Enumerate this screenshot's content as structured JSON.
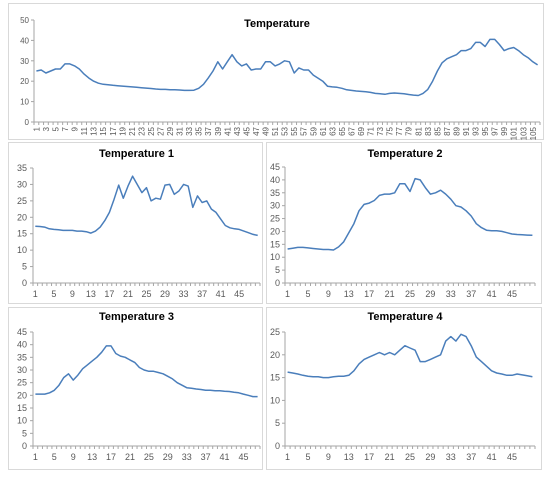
{
  "colors": {
    "line": "#4a7ebb",
    "axis": "#a6a6a6",
    "tick_text": "#595959",
    "title_text": "#000000",
    "border": "#d9d9d9"
  },
  "chart_data": [
    {
      "type": "line",
      "title": "Temperature",
      "ylim": [
        0,
        50
      ],
      "yticks": [
        0,
        10,
        20,
        30,
        40,
        50
      ],
      "grid": false,
      "legend": "none",
      "xtick_labels": [
        "1",
        "3",
        "5",
        "7",
        "9",
        "11",
        "13",
        "15",
        "17",
        "19",
        "21",
        "23",
        "25",
        "27",
        "29",
        "31",
        "33",
        "35",
        "37",
        "39",
        "41",
        "43",
        "45",
        "47",
        "49",
        "51",
        "53",
        "55",
        "57",
        "59",
        "61",
        "63",
        "65",
        "67",
        "69",
        "71",
        "73",
        "75",
        "77",
        "79",
        "81",
        "83",
        "85",
        "87",
        "89",
        "91",
        "93",
        "95",
        "97",
        "99",
        "101",
        "103",
        "105"
      ],
      "x": [
        1,
        2,
        3,
        4,
        5,
        6,
        7,
        8,
        9,
        10,
        11,
        12,
        13,
        14,
        15,
        16,
        17,
        18,
        19,
        20,
        21,
        22,
        23,
        24,
        25,
        26,
        27,
        28,
        29,
        30,
        31,
        32,
        33,
        34,
        35,
        36,
        37,
        38,
        39,
        40,
        41,
        42,
        43,
        44,
        45,
        46,
        47,
        48,
        49,
        50,
        51,
        52,
        53,
        54,
        55,
        56,
        57,
        58,
        59,
        60,
        61,
        62,
        63,
        64,
        65,
        66,
        67,
        68,
        69,
        70,
        71,
        72,
        73,
        74,
        75,
        76,
        77,
        78,
        79,
        80,
        81,
        82,
        83,
        84,
        85,
        86,
        87,
        88,
        89,
        90,
        91,
        92,
        93,
        94,
        95,
        96,
        97,
        98,
        99,
        100,
        101,
        102,
        103,
        104,
        105,
        106
      ],
      "values": [
        25,
        25.5,
        24,
        25,
        26,
        26,
        28.5,
        28.5,
        27.5,
        26,
        23.5,
        21.5,
        20,
        19,
        18.5,
        18.3,
        18,
        17.8,
        17.6,
        17.4,
        17.2,
        17,
        16.8,
        16.6,
        16.4,
        16.2,
        16,
        16,
        15.8,
        15.8,
        15.7,
        15.5,
        15.5,
        15.6,
        16.5,
        18.5,
        21.5,
        25,
        29.5,
        26,
        29.5,
        33,
        29.5,
        27.5,
        28.5,
        25.5,
        26,
        26,
        29.5,
        29.5,
        27.5,
        28.5,
        30,
        29.5,
        24,
        26.5,
        25.5,
        25.5,
        23,
        21.5,
        20,
        17.5,
        17.2,
        17,
        16.5,
        15.8,
        15.5,
        15.2,
        15,
        14.8,
        14.5,
        14,
        13.8,
        13.6,
        14,
        14.2,
        14,
        13.8,
        13.5,
        13.2,
        13,
        14,
        16,
        20,
        25,
        29,
        31,
        32,
        33,
        35,
        35,
        36,
        39,
        39,
        37,
        40.5,
        40.5,
        38,
        35,
        36,
        36.5,
        35,
        33,
        31.5,
        29.5,
        28
      ]
    },
    {
      "type": "line",
      "title": "Temperature 1",
      "ylim": [
        0,
        35
      ],
      "yticks": [
        0,
        5,
        10,
        15,
        20,
        25,
        30,
        35
      ],
      "grid": false,
      "legend": "none",
      "xtick_labels": [
        "1",
        "5",
        "9",
        "13",
        "17",
        "21",
        "25",
        "29",
        "33",
        "37",
        "41",
        "45"
      ],
      "x": [
        1,
        2,
        3,
        4,
        5,
        6,
        7,
        8,
        9,
        10,
        11,
        12,
        13,
        14,
        15,
        16,
        17,
        18,
        19,
        20,
        21,
        22,
        23,
        24,
        25,
        26,
        27,
        28,
        29,
        30,
        31,
        32,
        33,
        34,
        35,
        36,
        37,
        38,
        39,
        40,
        41,
        42,
        43,
        44,
        45,
        46,
        47,
        48,
        49
      ],
      "values": [
        17.3,
        17.2,
        17,
        16.5,
        16.3,
        16.2,
        16,
        16,
        16,
        15.8,
        15.8,
        15.6,
        15.2,
        15.8,
        17,
        19,
        21.5,
        25.5,
        29.8,
        25.8,
        29.5,
        32.5,
        30,
        27.5,
        29,
        25,
        25.8,
        25.5,
        29.8,
        30,
        27,
        28,
        30,
        29.5,
        23,
        26.5,
        24.5,
        25,
        22.5,
        21.5,
        19.5,
        17.5,
        16.8,
        16.5,
        16.3,
        15.8,
        15.3,
        14.8,
        14.5
      ]
    },
    {
      "type": "line",
      "title": "Temperature 2",
      "ylim": [
        0,
        45
      ],
      "yticks": [
        0,
        5,
        10,
        15,
        20,
        25,
        30,
        35,
        40,
        45
      ],
      "grid": false,
      "legend": "none",
      "xtick_labels": [
        "1",
        "5",
        "9",
        "13",
        "17",
        "21",
        "25",
        "29",
        "33",
        "37",
        "41",
        "45"
      ],
      "x": [
        1,
        2,
        3,
        4,
        5,
        6,
        7,
        8,
        9,
        10,
        11,
        12,
        13,
        14,
        15,
        16,
        17,
        18,
        19,
        20,
        21,
        22,
        23,
        24,
        25,
        26,
        27,
        28,
        29,
        30,
        31,
        32,
        33,
        34,
        35,
        36,
        37,
        38,
        39,
        40,
        41,
        42,
        43,
        44,
        45,
        46,
        47,
        48,
        49
      ],
      "values": [
        13.2,
        13.5,
        13.8,
        13.8,
        13.6,
        13.4,
        13.2,
        13,
        13,
        12.8,
        14,
        16,
        19.5,
        23,
        28,
        30.5,
        31,
        32,
        34,
        34.5,
        34.5,
        35,
        38.5,
        38.5,
        35.5,
        40.5,
        40,
        37,
        34.5,
        35,
        36,
        34.5,
        32.5,
        30,
        29.5,
        28,
        26,
        23,
        21.5,
        20.5,
        20.3,
        20.3,
        20,
        19.5,
        19,
        18.8,
        18.7,
        18.6,
        18.5
      ]
    },
    {
      "type": "line",
      "title": "Temperature 3",
      "ylim": [
        0,
        45
      ],
      "yticks": [
        0,
        5,
        10,
        15,
        20,
        25,
        30,
        35,
        40,
        45
      ],
      "grid": false,
      "legend": "none",
      "xtick_labels": [
        "1",
        "5",
        "9",
        "13",
        "17",
        "21",
        "25",
        "29",
        "33",
        "37",
        "41",
        "45"
      ],
      "x": [
        1,
        2,
        3,
        4,
        5,
        6,
        7,
        8,
        9,
        10,
        11,
        12,
        13,
        14,
        15,
        16,
        17,
        18,
        19,
        20,
        21,
        22,
        23,
        24,
        25,
        26,
        27,
        28,
        29,
        30,
        31,
        32,
        33,
        34,
        35,
        36,
        37,
        38,
        39,
        40,
        41,
        42,
        43,
        44,
        45,
        46,
        47,
        48
      ],
      "values": [
        20.5,
        20.5,
        20.5,
        21,
        22,
        24,
        27,
        28.5,
        26,
        28,
        30.5,
        32,
        33.5,
        35,
        37,
        39.5,
        39.5,
        36.5,
        35.5,
        35,
        34,
        33,
        31,
        30,
        29.5,
        29.5,
        29,
        28.5,
        27.5,
        26.5,
        25,
        24,
        23,
        22.8,
        22.5,
        22.3,
        22,
        22,
        21.8,
        21.8,
        21.6,
        21.5,
        21.2,
        21,
        20.5,
        20,
        19.5,
        19.5
      ]
    },
    {
      "type": "line",
      "title": "Temperature 4",
      "ylim": [
        0,
        25
      ],
      "yticks": [
        0,
        5,
        10,
        15,
        20,
        25
      ],
      "grid": false,
      "legend": "none",
      "xtick_labels": [
        "1",
        "5",
        "9",
        "13",
        "17",
        "21",
        "25",
        "29",
        "33",
        "37",
        "41",
        "45"
      ],
      "x": [
        1,
        2,
        3,
        4,
        5,
        6,
        7,
        8,
        9,
        10,
        11,
        12,
        13,
        14,
        15,
        16,
        17,
        18,
        19,
        20,
        21,
        22,
        23,
        24,
        25,
        26,
        27,
        28,
        29,
        30,
        31,
        32,
        33,
        34,
        35,
        36,
        37,
        38,
        39,
        40,
        41,
        42,
        43,
        44,
        45,
        46,
        47,
        48,
        49
      ],
      "values": [
        16.2,
        16,
        15.8,
        15.5,
        15.3,
        15.2,
        15.2,
        15,
        15,
        15.2,
        15.3,
        15.3,
        15.5,
        16.5,
        18,
        19,
        19.5,
        20,
        20.5,
        20,
        20.5,
        20,
        21,
        22,
        21.5,
        21,
        18.5,
        18.5,
        19,
        19.5,
        20,
        23,
        24,
        23,
        24.5,
        24,
        22,
        19.5,
        18.5,
        17.5,
        16.5,
        16,
        15.8,
        15.5,
        15.5,
        15.8,
        15.6,
        15.4,
        15.2
      ]
    }
  ]
}
